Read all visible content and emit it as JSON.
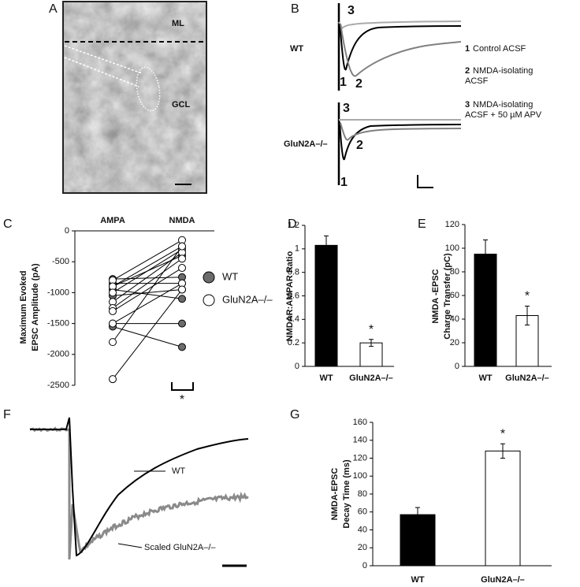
{
  "panel_a": {
    "letter": "A",
    "labels": [
      "ML",
      "GCL"
    ]
  },
  "panel_b": {
    "letter": "B",
    "rows": [
      {
        "label": "WT",
        "trace_numbers": [
          "3",
          "1",
          "2"
        ]
      },
      {
        "label": "GluN2A–/–",
        "trace_numbers": [
          "3",
          "2",
          "1"
        ]
      }
    ],
    "legend": [
      {
        "number": "1",
        "lines": [
          "Control ACSF"
        ]
      },
      {
        "number": "2",
        "lines": [
          "NMDA-isolating",
          "ACSF"
        ]
      },
      {
        "number": "3",
        "lines": [
          "NMDA-isolating",
          "ACSF + 50 µM APV"
        ]
      }
    ]
  },
  "panel_f": {
    "letter": "F",
    "labels": [
      "WT",
      "Scaled GluN2A–/–"
    ]
  },
  "chart_data": [
    {
      "type": "paired",
      "panel": "C",
      "ylabel": [
        "Maximum Evoked",
        "EPSC Amplitude (pA)"
      ],
      "categories": [
        "AMPA",
        "NMDA"
      ],
      "ylim": [
        -2500,
        0
      ],
      "yticks": [
        -2500,
        -2000,
        -1500,
        -1000,
        -500,
        0
      ],
      "annotation": "*",
      "series": [
        {
          "name": "WT",
          "color": "#6b6b6b",
          "values": [
            [
              -780,
              -750
            ],
            [
              -850,
              -850
            ],
            [
              -900,
              -400
            ],
            [
              -1050,
              -950
            ],
            [
              -1500,
              -1500
            ],
            [
              -1550,
              -1880
            ],
            [
              -950,
              -1100
            ]
          ]
        },
        {
          "name": "GluN2A–/–",
          "color": "#ffffff",
          "values": [
            [
              -800,
              -150
            ],
            [
              -900,
              -250
            ],
            [
              -1000,
              -300
            ],
            [
              -1150,
              -350
            ],
            [
              -1250,
              -450
            ],
            [
              -1300,
              -600
            ],
            [
              -1500,
              -850
            ],
            [
              -1800,
              -250
            ],
            [
              -2400,
              -950
            ]
          ]
        }
      ]
    },
    {
      "type": "bar",
      "panel": "D",
      "ylabel": [
        "NMDAR:AMPAR Ratio"
      ],
      "categories": [
        "WT",
        "GluN2A–/–"
      ],
      "values": [
        1.03,
        0.2
      ],
      "errors": [
        0.08,
        0.03
      ],
      "colors": [
        "#000000",
        "#ffffff"
      ],
      "annotation": "*",
      "ylim": [
        0,
        1.2
      ],
      "yticks": [
        0,
        0.2,
        0.4,
        0.6,
        0.8,
        1,
        1.2
      ]
    },
    {
      "type": "bar",
      "panel": "E",
      "ylabel": [
        "NMDA -EPSC",
        "Charge Transfer (pC)"
      ],
      "categories": [
        "WT",
        "GluN2A–/–"
      ],
      "values": [
        95,
        43
      ],
      "errors": [
        12,
        8
      ],
      "colors": [
        "#000000",
        "#ffffff"
      ],
      "annotation": "*",
      "ylim": [
        0,
        120
      ],
      "yticks": [
        0,
        20,
        40,
        60,
        80,
        100,
        120
      ]
    },
    {
      "type": "bar",
      "panel": "G",
      "ylabel": [
        "NMDA-EPSC",
        "Decay Time (ms)"
      ],
      "categories": [
        "WT",
        "GluN2A–/–"
      ],
      "values": [
        57,
        128
      ],
      "errors": [
        8,
        8
      ],
      "colors": [
        "#000000",
        "#ffffff"
      ],
      "annotation": "*",
      "ylim": [
        0,
        160
      ],
      "yticks": [
        0,
        20,
        40,
        60,
        80,
        100,
        120,
        140,
        160
      ]
    }
  ]
}
